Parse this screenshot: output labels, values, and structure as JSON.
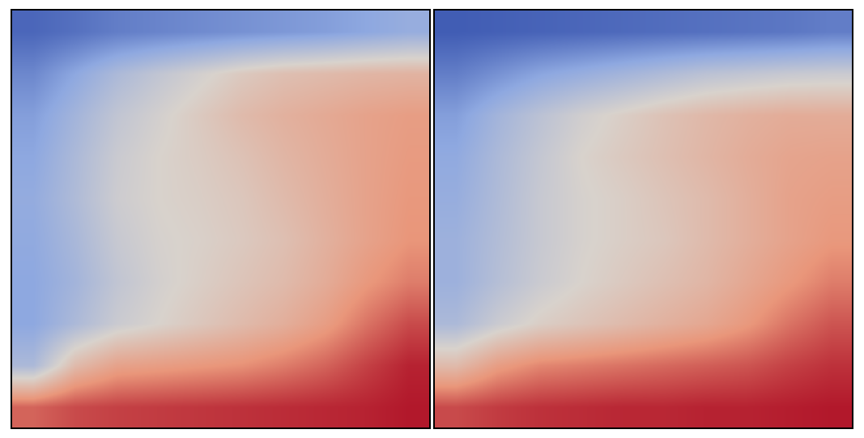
{
  "chart_data": [
    {
      "type": "heatmap",
      "tick_labels": false,
      "zlim": [
        0,
        1
      ],
      "z": [
        [
          0.85,
          0.9,
          0.92,
          0.93,
          0.94,
          0.95,
          0.96,
          0.97,
          0.98,
          1.0
        ],
        [
          0.35,
          0.6,
          0.7,
          0.72,
          0.74,
          0.76,
          0.8,
          0.85,
          0.92,
          0.98
        ],
        [
          0.25,
          0.35,
          0.45,
          0.5,
          0.55,
          0.6,
          0.65,
          0.72,
          0.82,
          0.9
        ],
        [
          0.25,
          0.32,
          0.42,
          0.48,
          0.52,
          0.56,
          0.6,
          0.66,
          0.74,
          0.8
        ],
        [
          0.26,
          0.34,
          0.44,
          0.49,
          0.51,
          0.54,
          0.58,
          0.64,
          0.7,
          0.75
        ],
        [
          0.27,
          0.36,
          0.46,
          0.5,
          0.52,
          0.55,
          0.6,
          0.65,
          0.7,
          0.74
        ],
        [
          0.25,
          0.35,
          0.45,
          0.5,
          0.53,
          0.57,
          0.62,
          0.66,
          0.7,
          0.73
        ],
        [
          0.22,
          0.32,
          0.42,
          0.48,
          0.54,
          0.6,
          0.64,
          0.67,
          0.7,
          0.72
        ],
        [
          0.15,
          0.25,
          0.35,
          0.42,
          0.48,
          0.54,
          0.58,
          0.6,
          0.62,
          0.63
        ],
        [
          0.05,
          0.08,
          0.12,
          0.14,
          0.16,
          0.18,
          0.2,
          0.22,
          0.25,
          0.28
        ]
      ]
    },
    {
      "type": "heatmap",
      "tick_labels": false,
      "zlim": [
        0,
        1
      ],
      "z": [
        [
          0.9,
          0.93,
          0.95,
          0.96,
          0.97,
          0.97,
          0.98,
          0.98,
          0.99,
          1.0
        ],
        [
          0.6,
          0.72,
          0.78,
          0.8,
          0.82,
          0.84,
          0.86,
          0.88,
          0.92,
          0.95
        ],
        [
          0.35,
          0.45,
          0.52,
          0.56,
          0.6,
          0.64,
          0.68,
          0.74,
          0.82,
          0.88
        ],
        [
          0.3,
          0.38,
          0.45,
          0.5,
          0.54,
          0.58,
          0.62,
          0.68,
          0.74,
          0.8
        ],
        [
          0.3,
          0.37,
          0.44,
          0.49,
          0.52,
          0.55,
          0.6,
          0.65,
          0.7,
          0.74
        ],
        [
          0.28,
          0.36,
          0.44,
          0.49,
          0.52,
          0.56,
          0.6,
          0.65,
          0.7,
          0.72
        ],
        [
          0.26,
          0.35,
          0.43,
          0.5,
          0.54,
          0.58,
          0.62,
          0.66,
          0.69,
          0.7
        ],
        [
          0.22,
          0.32,
          0.4,
          0.47,
          0.52,
          0.57,
          0.61,
          0.64,
          0.66,
          0.66
        ],
        [
          0.12,
          0.18,
          0.24,
          0.28,
          0.32,
          0.36,
          0.4,
          0.42,
          0.44,
          0.45
        ],
        [
          0.02,
          0.03,
          0.04,
          0.05,
          0.06,
          0.07,
          0.08,
          0.09,
          0.1,
          0.12
        ]
      ]
    }
  ]
}
